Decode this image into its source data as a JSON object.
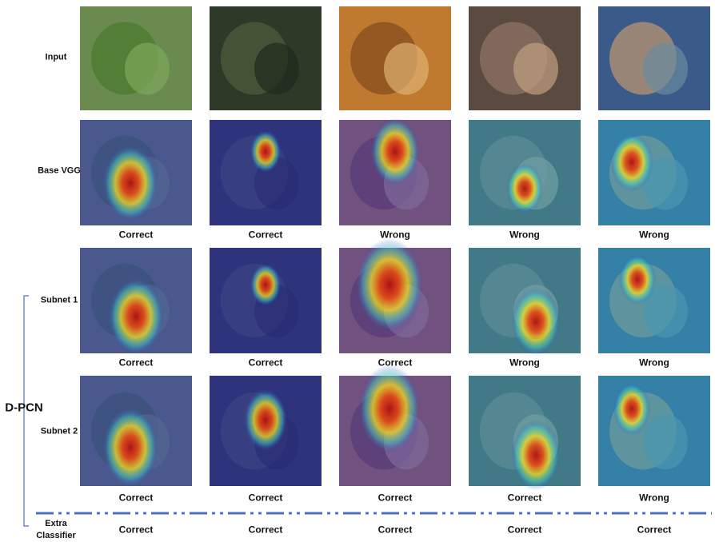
{
  "rows": [
    {
      "label": "Input"
    },
    {
      "label": "Base VGG",
      "results": [
        "Correct",
        "Correct",
        "Wrong",
        "Wrong",
        "Wrong"
      ]
    },
    {
      "label": "Subnet 1",
      "results": [
        "Correct",
        "Correct",
        "Correct",
        "Wrong",
        "Wrong"
      ]
    },
    {
      "label": "Subnet 2",
      "results": [
        "Correct",
        "Correct",
        "Correct",
        "Correct",
        "Wrong"
      ]
    }
  ],
  "group_label": "D-PCN",
  "extra": {
    "label": "Extra Classifier",
    "results": [
      "Correct",
      "Correct",
      "Correct",
      "Correct",
      "Correct"
    ]
  }
}
